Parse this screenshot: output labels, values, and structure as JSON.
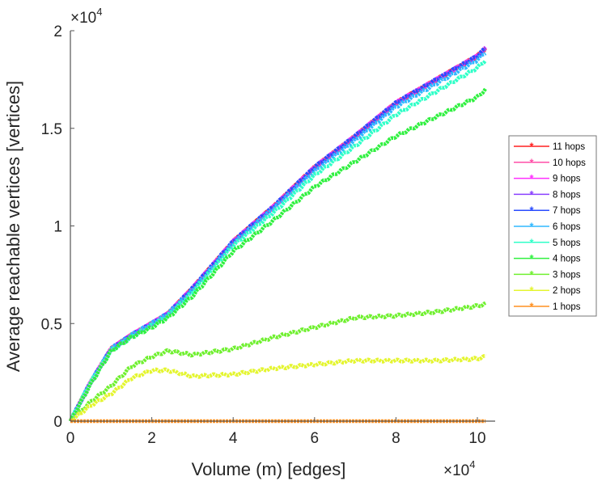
{
  "chart_data": {
    "type": "line",
    "title": "",
    "xlabel": "Volume (m) [edges]",
    "ylabel": "Average reachable vertices [vertices]",
    "x_multiplier": "×10",
    "x_multiplier_exp": "4",
    "y_multiplier": "×10",
    "y_multiplier_exp": "4",
    "xlim": [
      0,
      10.45
    ],
    "ylim": [
      0,
      2
    ],
    "xticks": [
      "0",
      "2",
      "4",
      "6",
      "8",
      "10"
    ],
    "yticks": [
      "0",
      "0.5",
      "1",
      "1.5",
      "2"
    ],
    "grid": false,
    "legend_position": "outside-right",
    "x": [
      0,
      0.5,
      1,
      1.5,
      2,
      2.4,
      3,
      4,
      5,
      6,
      7,
      8,
      9,
      10,
      10.2
    ],
    "series": [
      {
        "name": "11 hops",
        "color": "#ff2020",
        "values": [
          0,
          0.2,
          0.37,
          0.44,
          0.5,
          0.55,
          0.68,
          0.92,
          1.1,
          1.3,
          1.46,
          1.63,
          1.75,
          1.87,
          1.91
        ]
      },
      {
        "name": "10 hops",
        "color": "#ff4fa8",
        "values": [
          0,
          0.2,
          0.37,
          0.44,
          0.5,
          0.55,
          0.68,
          0.92,
          1.1,
          1.3,
          1.46,
          1.63,
          1.75,
          1.87,
          1.91
        ]
      },
      {
        "name": "9 hops",
        "color": "#ff30ff",
        "values": [
          0,
          0.2,
          0.37,
          0.44,
          0.5,
          0.55,
          0.68,
          0.92,
          1.1,
          1.3,
          1.46,
          1.63,
          1.75,
          1.87,
          1.91
        ]
      },
      {
        "name": "8 hops",
        "color": "#8a40ff",
        "values": [
          0,
          0.2,
          0.37,
          0.44,
          0.5,
          0.55,
          0.68,
          0.92,
          1.1,
          1.3,
          1.46,
          1.63,
          1.75,
          1.87,
          1.91
        ]
      },
      {
        "name": "7 hops",
        "color": "#2a4cff",
        "values": [
          0,
          0.2,
          0.37,
          0.44,
          0.5,
          0.55,
          0.68,
          0.92,
          1.1,
          1.3,
          1.46,
          1.63,
          1.75,
          1.87,
          1.91
        ]
      },
      {
        "name": "6 hops",
        "color": "#30b8ff",
        "values": [
          0,
          0.2,
          0.37,
          0.44,
          0.5,
          0.55,
          0.67,
          0.91,
          1.09,
          1.28,
          1.44,
          1.61,
          1.73,
          1.85,
          1.89
        ]
      },
      {
        "name": "5 hops",
        "color": "#30ffc8",
        "values": [
          0,
          0.2,
          0.36,
          0.43,
          0.49,
          0.54,
          0.66,
          0.9,
          1.07,
          1.26,
          1.41,
          1.57,
          1.69,
          1.81,
          1.85
        ]
      },
      {
        "name": "4 hops",
        "color": "#30f040",
        "values": [
          0,
          0.19,
          0.36,
          0.43,
          0.48,
          0.53,
          0.64,
          0.87,
          1.03,
          1.2,
          1.33,
          1.46,
          1.56,
          1.66,
          1.7
        ]
      },
      {
        "name": "3 hops",
        "color": "#70f030",
        "values": [
          0,
          0.1,
          0.18,
          0.28,
          0.33,
          0.36,
          0.34,
          0.37,
          0.43,
          0.48,
          0.53,
          0.54,
          0.56,
          0.59,
          0.6
        ]
      },
      {
        "name": "2 hops",
        "color": "#e4f530",
        "values": [
          0,
          0.08,
          0.14,
          0.22,
          0.26,
          0.26,
          0.23,
          0.24,
          0.27,
          0.29,
          0.31,
          0.31,
          0.31,
          0.32,
          0.33
        ]
      },
      {
        "name": "1 hops",
        "color": "#ff9020",
        "values": [
          0,
          0,
          0,
          0,
          0,
          0,
          0,
          0,
          0,
          0,
          0,
          0,
          0,
          0,
          0
        ]
      }
    ]
  }
}
